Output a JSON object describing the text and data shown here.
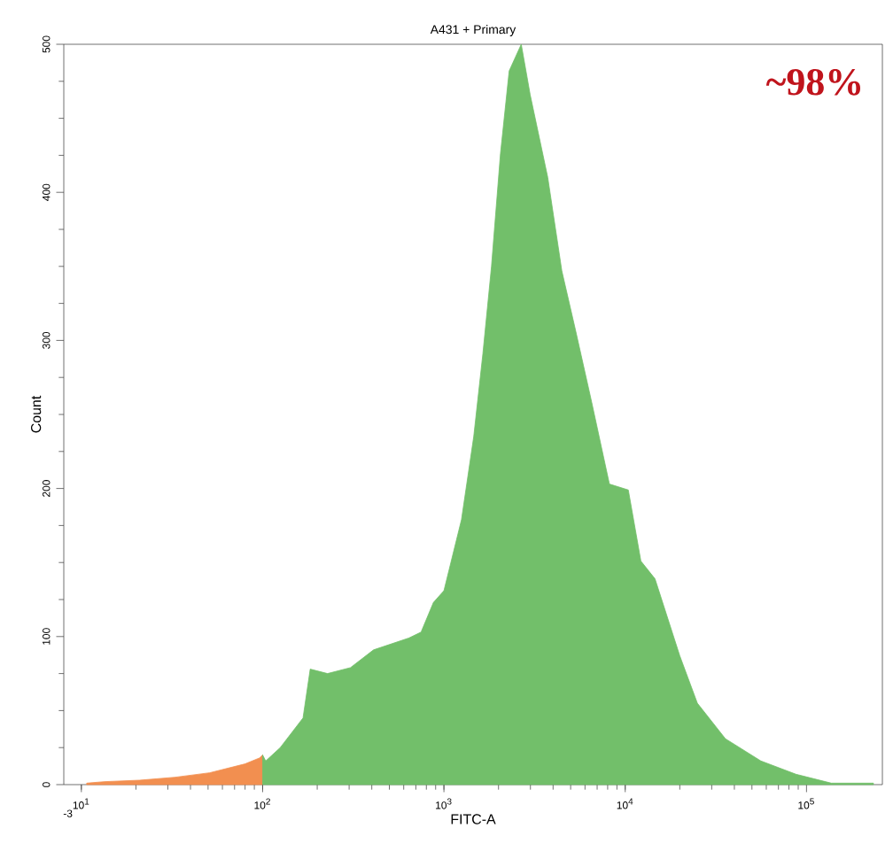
{
  "chart_data": {
    "type": "area",
    "title": "A431 + Primary",
    "xlabel": "FITC-A",
    "ylabel": "Count",
    "log": "x",
    "xlim": [
      8,
      262144
    ],
    "ylim": [
      0,
      500
    ],
    "xticks": [
      {
        "value": 10,
        "label": "10$^{1}$"
      },
      {
        "value": 100,
        "label": "10$^{2}$"
      },
      {
        "value": 1000,
        "label": "10$^{3}$"
      },
      {
        "value": 10000,
        "label": "10$^{4}$"
      },
      {
        "value": 100000,
        "label": "10$^{5}$"
      }
    ],
    "yticks": [
      0,
      100,
      200,
      300,
      400,
      500
    ],
    "series": [
      {
        "color": "#f28f50",
        "x": [
          10.7,
          13.4,
          21,
          33,
          51,
          80,
          96,
          100
        ],
        "values": [
          1,
          2,
          3,
          5,
          8,
          14,
          18,
          20
        ]
      },
      {
        "color": "#72bf6a",
        "x": [
          100,
          104,
          125,
          167,
          183,
          228,
          305,
          409,
          640,
          748,
          875,
          1000,
          1250,
          1460,
          1640,
          1830,
          2050,
          2290,
          2670,
          2990,
          3740,
          4470,
          5340,
          6540,
          8180,
          10400,
          12200,
          14600,
          20000,
          25000,
          35700,
          56000,
          87500,
          137000,
          234000
        ],
        "values": [
          20,
          16,
          25,
          45,
          78,
          75,
          79,
          91,
          99,
          103,
          123,
          131,
          179,
          235,
          291,
          350,
          426,
          482,
          500,
          466,
          410,
          347,
          306,
          258,
          203,
          199,
          151,
          139,
          87,
          55,
          31,
          16,
          7,
          1,
          1
        ]
      }
    ],
    "annotations": [
      "~98%",
      "-3"
    ]
  }
}
